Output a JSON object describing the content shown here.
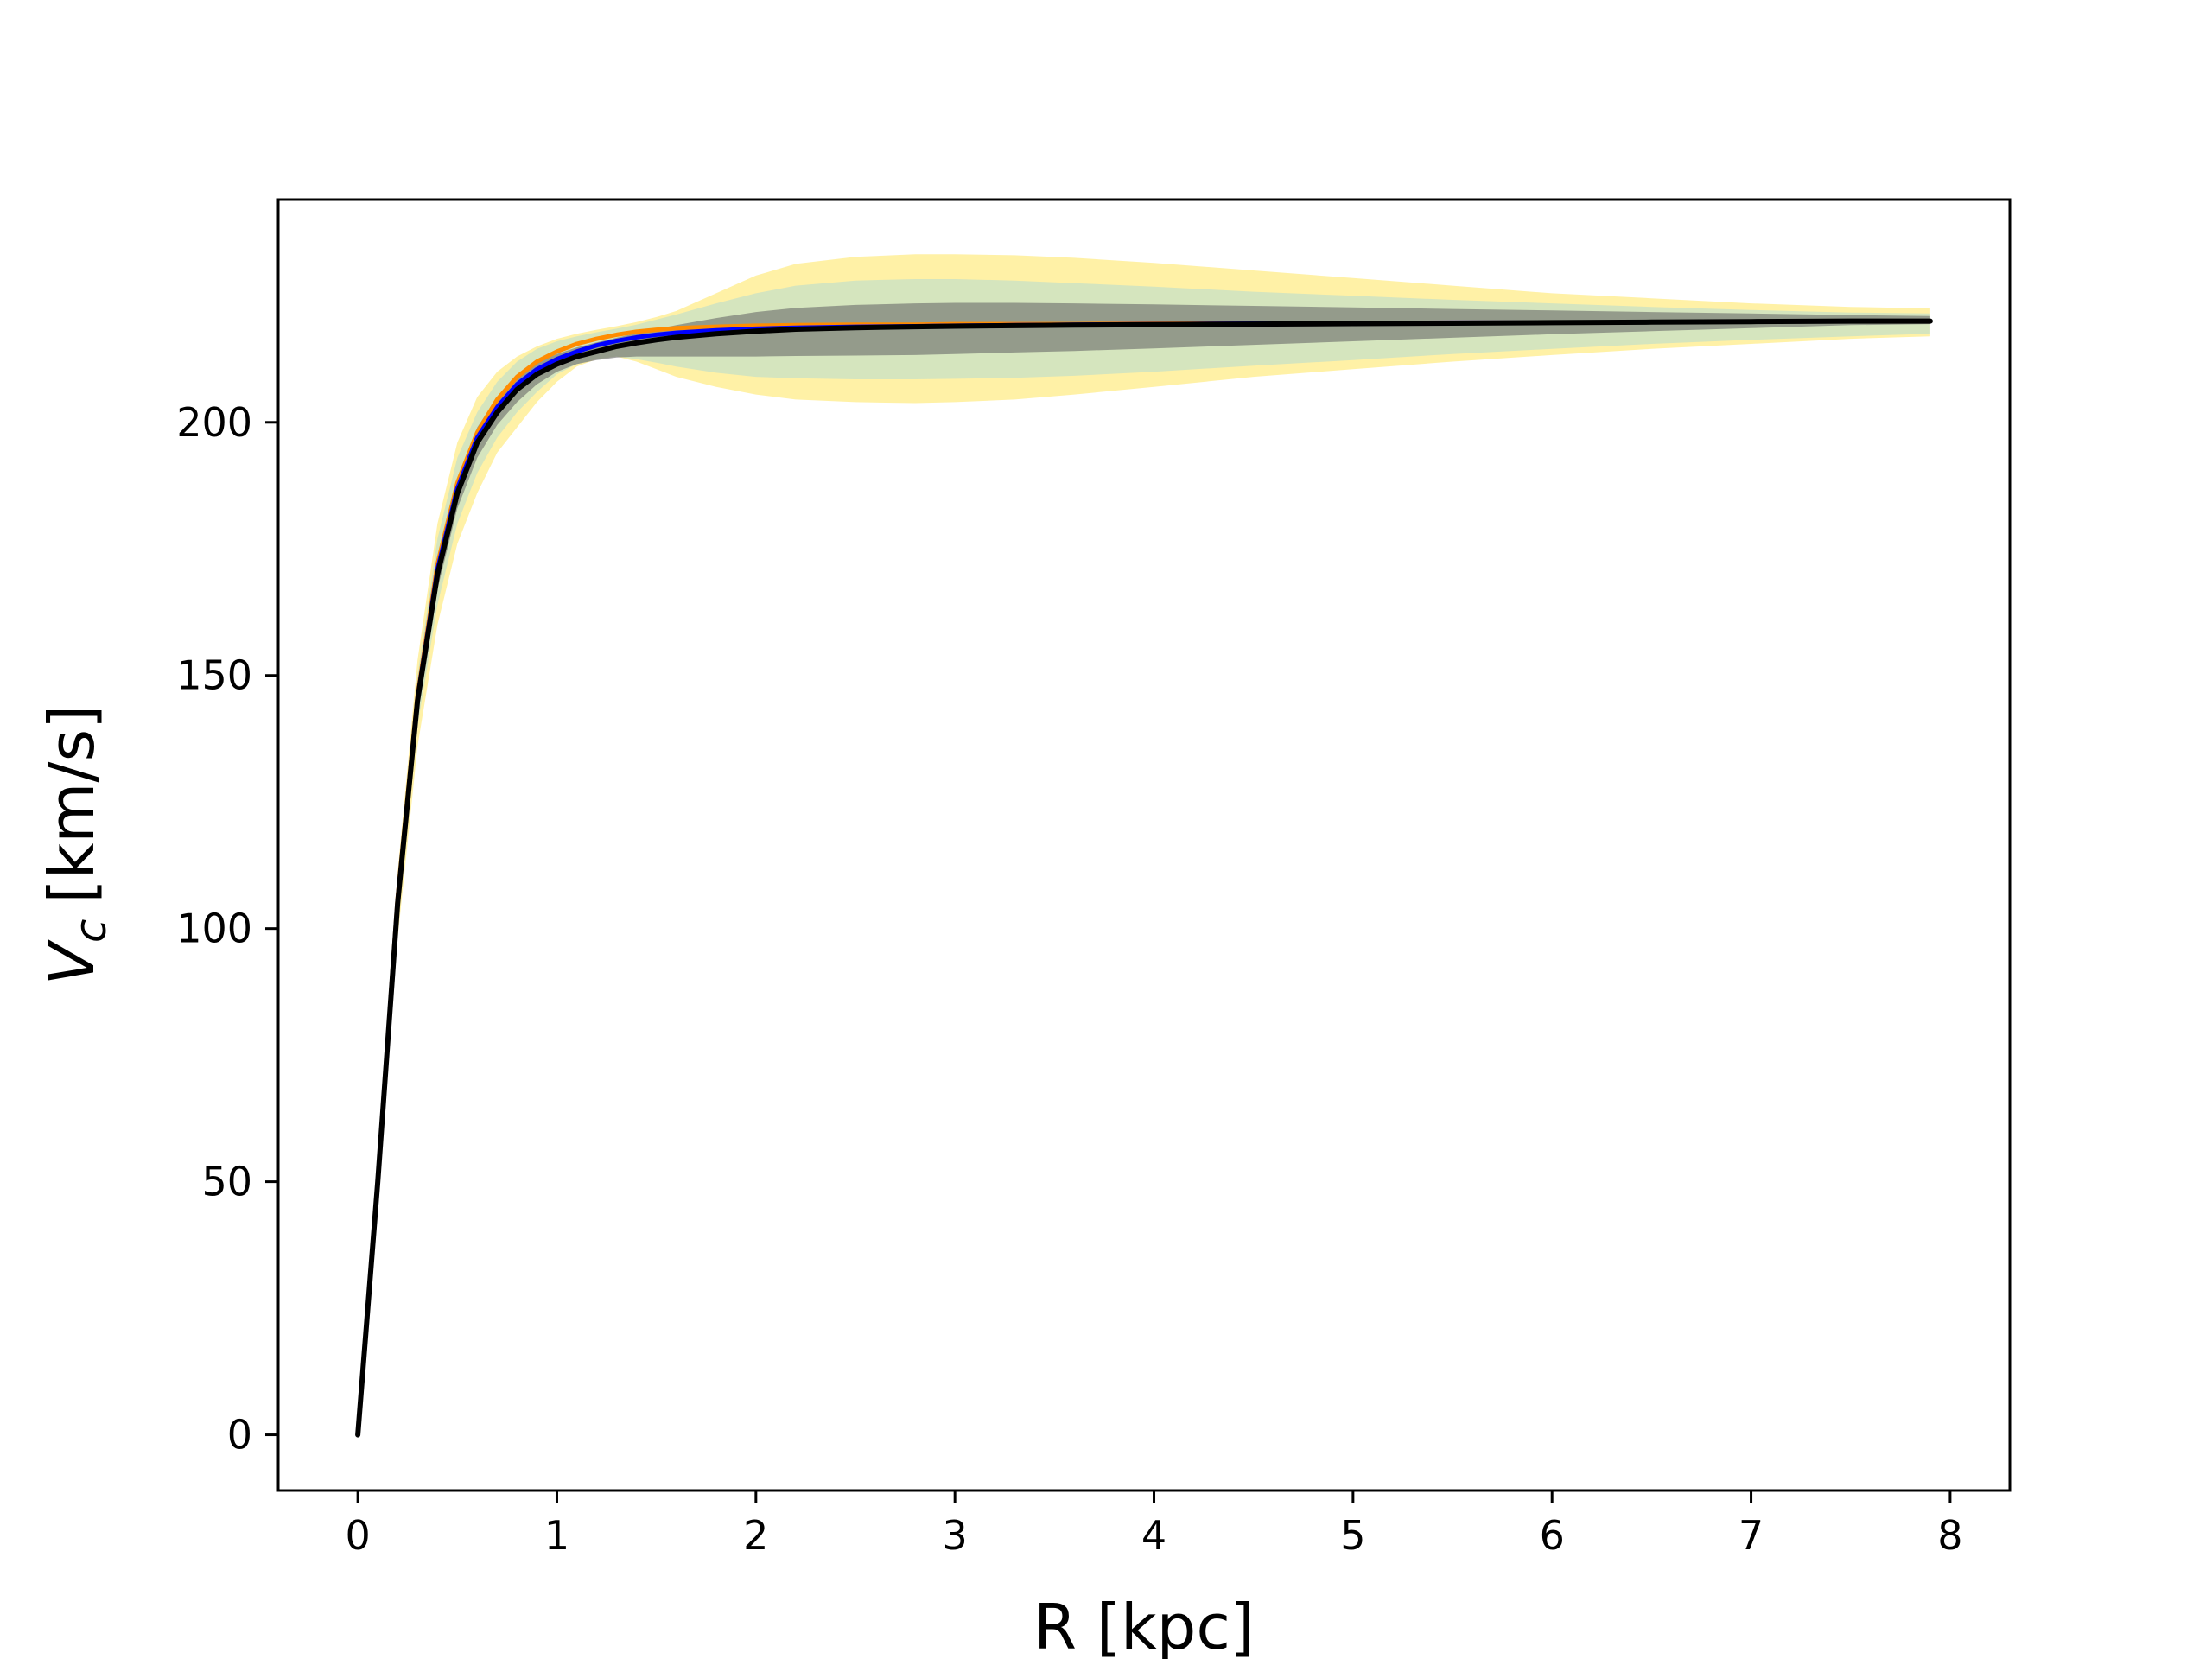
{
  "chart_data": {
    "type": "line",
    "title": "",
    "xlabel": "R [kpc]",
    "ylabel_main": "V",
    "ylabel_sub": "c",
    "ylabel_unit": "[km/s]",
    "xlim": [
      -0.4,
      8.3
    ],
    "ylim": [
      -11,
      244
    ],
    "xticks": [
      0,
      1,
      2,
      3,
      4,
      5,
      6,
      7,
      8
    ],
    "yticks": [
      0,
      50,
      100,
      150,
      200
    ],
    "grid": false,
    "legend": "none",
    "x": [
      0,
      0.1,
      0.2,
      0.3,
      0.4,
      0.5,
      0.6,
      0.7,
      0.8,
      0.9,
      1.0,
      1.1,
      1.2,
      1.3,
      1.4,
      1.5,
      1.6,
      1.8,
      2.0,
      2.2,
      2.5,
      2.8,
      3.0,
      3.3,
      3.6,
      4.0,
      4.5,
      5.0,
      5.5,
      6.0,
      6.5,
      7.0,
      7.5,
      7.9
    ],
    "series": [
      {
        "color": "#000000",
        "values": [
          0,
          50,
          105,
          145,
          170,
          186,
          196,
          202,
          206.5,
          209.5,
          211.5,
          213,
          214,
          215,
          215.7,
          216.3,
          216.8,
          217.5,
          218,
          218.4,
          218.7,
          218.9,
          219,
          219.1,
          219.2,
          219.3,
          219.4,
          219.5,
          219.6,
          219.7,
          219.8,
          219.9,
          220,
          220
        ]
      },
      {
        "color": "#0000ff",
        "values": [
          0,
          50,
          105.5,
          145.5,
          171,
          187,
          197,
          203,
          207.5,
          210.5,
          212.5,
          214,
          215.2,
          216.1,
          216.8,
          217.3,
          217.7,
          218.2,
          218.5,
          218.7,
          218.9,
          219,
          219.1,
          219.2,
          219.3,
          219.4,
          219.5,
          219.6,
          219.7,
          219.7,
          219.8,
          219.9,
          220,
          220
        ]
      },
      {
        "color": "#ff8c00",
        "values": [
          0,
          50,
          106,
          146,
          172,
          188,
          198,
          204.5,
          209,
          212,
          214,
          215.5,
          216.5,
          217.3,
          217.9,
          218.3,
          218.6,
          218.9,
          219.1,
          219.2,
          219.3,
          219.3,
          219.4,
          219.4,
          219.4,
          219.5,
          219.5,
          219.6,
          219.7,
          219.7,
          219.8,
          219.9,
          220,
          220
        ]
      }
    ],
    "bands": [
      {
        "color": "#ffd700",
        "lower": [
          0,
          47,
          98,
          136,
          160,
          176,
          186,
          194,
          199,
          204,
          208,
          211,
          212.5,
          213,
          212,
          210.5,
          209,
          207,
          205.5,
          204.5,
          204,
          203.8,
          204,
          204.5,
          205.5,
          207,
          209,
          210.5,
          212,
          213.3,
          214.5,
          215.5,
          216.5,
          217
        ]
      },
      {
        "color": "#ffd700",
        "upper": [
          0,
          53,
          111,
          153,
          180,
          196,
          205,
          210,
          213,
          215,
          216.5,
          217.5,
          218.3,
          219,
          219.8,
          220.8,
          222,
          225.5,
          229,
          231.3,
          232.7,
          233.2,
          233.2,
          233,
          232.5,
          231.5,
          230,
          228.5,
          227,
          225.5,
          224.5,
          223.5,
          222.8,
          222.5
        ]
      },
      {
        "color": "#87ceeb",
        "lower": [
          0,
          48,
          101,
          140,
          164,
          180,
          190,
          197,
          202,
          206,
          209.5,
          211.5,
          212.5,
          213,
          212.5,
          211.8,
          211,
          209.8,
          209,
          208.7,
          208.5,
          208.5,
          208.6,
          208.8,
          209.2,
          210,
          211.2,
          212.3,
          213.5,
          214.5,
          215.5,
          216.3,
          217,
          217.5
        ]
      },
      {
        "color": "#87ceeb",
        "upper": [
          0,
          52,
          109,
          150,
          177,
          193,
          202,
          208,
          212,
          214.5,
          216,
          217,
          217.8,
          218.5,
          219.3,
          220.3,
          221.3,
          223.5,
          225.5,
          227,
          228,
          228.3,
          228.3,
          228,
          227.5,
          226.8,
          225.8,
          225,
          224.2,
          223.5,
          222.8,
          222.2,
          221.7,
          221.5
        ]
      },
      {
        "color": "#696969",
        "lower": [
          0,
          49,
          103,
          143,
          167,
          183,
          193,
          199.5,
          204,
          207.5,
          210,
          211.5,
          212.3,
          212.8,
          213,
          213,
          213,
          213,
          213,
          213.1,
          213.2,
          213.3,
          213.5,
          213.8,
          214.1,
          214.6,
          215.3,
          216,
          216.7,
          217.4,
          218,
          218.6,
          219.2,
          219.4
        ]
      },
      {
        "color": "#696969",
        "upper": [
          0,
          51,
          107,
          147,
          173,
          189,
          199,
          205,
          209,
          211.8,
          213.5,
          214.8,
          215.8,
          216.7,
          217.6,
          218.4,
          219.2,
          220.6,
          221.8,
          222.6,
          223.2,
          223.5,
          223.6,
          223.6,
          223.5,
          223.3,
          223,
          222.7,
          222.4,
          222.1,
          221.8,
          221.5,
          221.2,
          221
        ]
      }
    ]
  }
}
